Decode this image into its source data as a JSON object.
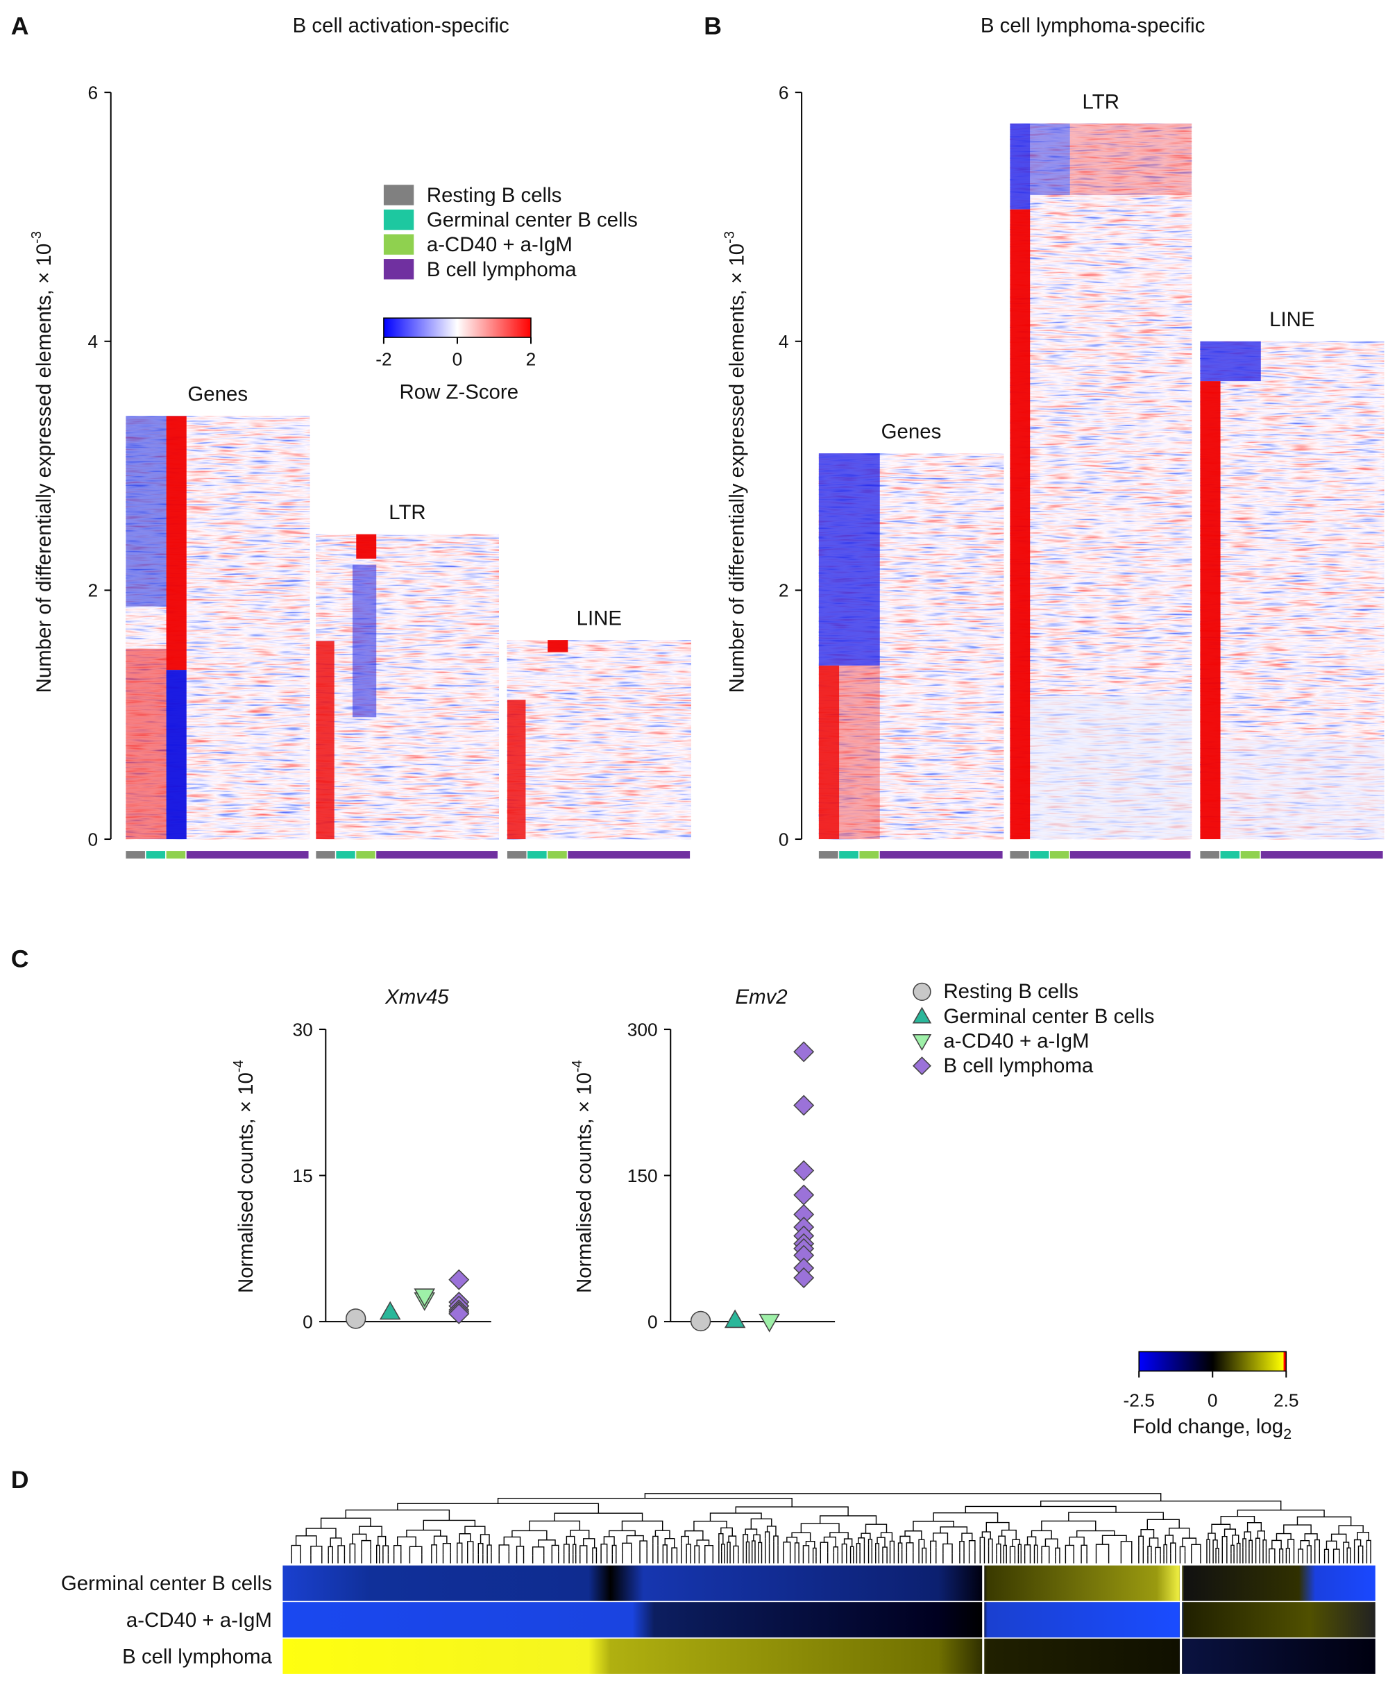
{
  "panel_labels": [
    "A",
    "B",
    "C",
    "D"
  ],
  "chart_data": [
    {
      "type": "bar",
      "title": "B cell activation-specific",
      "ylabel": "Number of differentially expressed elements, × 10",
      "ylabel_exponent": "-3",
      "categories": [
        "Genes",
        "LTR",
        "LINE"
      ],
      "values": [
        3.4,
        2.45,
        1.6
      ],
      "ylim": [
        0,
        6
      ],
      "yticks": [
        0,
        2,
        4,
        6
      ]
    },
    {
      "type": "bar",
      "title": "B cell lymphoma-specific",
      "ylabel": "Number of differentially expressed elements, × 10",
      "ylabel_exponent": "-3",
      "categories": [
        "Genes",
        "LTR",
        "LINE"
      ],
      "values": [
        3.1,
        5.75,
        4.0
      ],
      "ylim": [
        0,
        6
      ],
      "yticks": [
        0,
        2,
        4,
        6
      ]
    },
    {
      "type": "scatter",
      "title": "Xmv45",
      "ylabel": "Normalised counts, × 10",
      "ylabel_exponent": "-4",
      "ylim": [
        0,
        30
      ],
      "yticks": [
        0,
        15,
        30
      ],
      "series": [
        {
          "name": "Resting B cells",
          "color": "#c8c8c8",
          "marker": "circle",
          "values": [
            0.3
          ]
        },
        {
          "name": "Germinal center B cells",
          "color": "#2ab79a",
          "marker": "triangle-up",
          "values": [
            1.0
          ]
        },
        {
          "name": "a-CD40 + a-IgM",
          "color": "#9ef0a8",
          "marker": "triangle-down",
          "values": [
            2.2,
            2.6
          ]
        },
        {
          "name": "B cell lymphoma",
          "color": "#9b72d9",
          "marker": "diamond",
          "values": [
            4.3,
            2.0,
            1.6,
            1.2,
            1.0,
            0.8
          ]
        }
      ]
    },
    {
      "type": "scatter",
      "title": "Emv2",
      "ylabel": "Normalised counts, × 10",
      "ylabel_exponent": "-4",
      "ylim": [
        0,
        300
      ],
      "yticks": [
        0,
        150,
        300
      ],
      "series": [
        {
          "color": "#c8c8c8",
          "marker": "circle",
          "values": [
            0.5
          ]
        },
        {
          "color": "#2ab79a",
          "marker": "triangle-up",
          "values": [
            1.5
          ]
        },
        {
          "color": "#9ef0a8",
          "marker": "triangle-down",
          "values": [
            0
          ]
        },
        {
          "color": "#9b72d9",
          "marker": "diamond",
          "values": [
            277,
            222,
            155,
            130,
            110,
            97,
            88,
            80,
            75,
            68,
            55,
            45
          ]
        }
      ]
    }
  ],
  "sample_groups": [
    {
      "name": "Resting B cells",
      "color": "#808080"
    },
    {
      "name": "Germinal center B cells",
      "color": "#1dc8a0"
    },
    {
      "name": "a-CD40 + a-IgM",
      "color": "#8fd14f"
    },
    {
      "name": "B cell lymphoma",
      "color": "#7030a0"
    }
  ],
  "zscore_colorbar": {
    "ticks": [
      -2,
      0,
      2
    ],
    "label": "Row Z-Score"
  },
  "fold_colorbar": {
    "ticks": [
      -2.5,
      0,
      2.5
    ],
    "label": "Fold change, log",
    "label_subscript": "2"
  },
  "panel_d": {
    "rows": [
      "Germinal center B cells",
      "a-CD40 + a-IgM",
      "B cell lymphoma"
    ]
  }
}
